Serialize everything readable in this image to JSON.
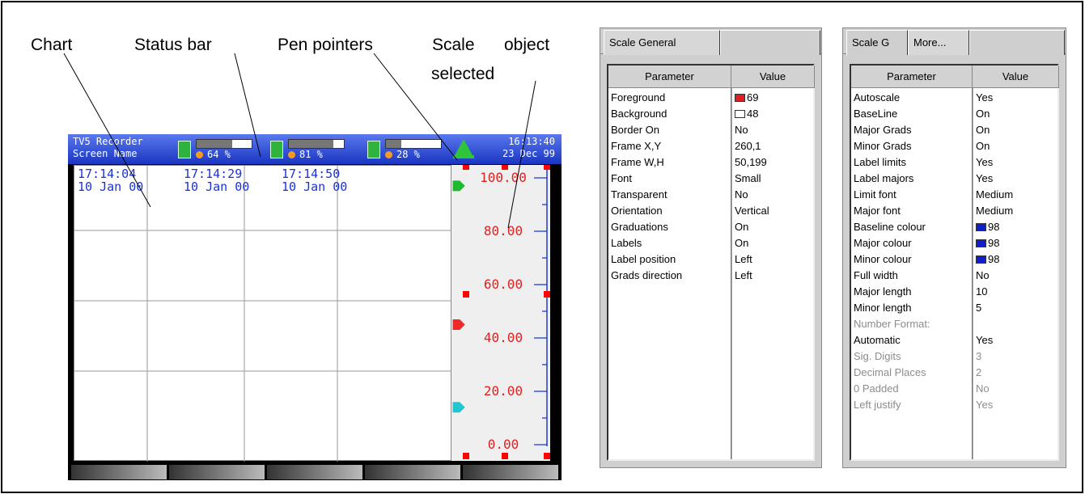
{
  "callouts": {
    "chart": "Chart",
    "status_bar": "Status bar",
    "pen_pointers": "Pen pointers",
    "scale_line1": "Scale",
    "scale_line2": "object",
    "scale_line3": "selected"
  },
  "recorder": {
    "title_line1": "TV5 Recorder",
    "title_line2": "Screen Name",
    "time": "16:13:40",
    "date": "23 Dec 99",
    "meters": [
      {
        "pct_label": "64 %",
        "fill": 0.64
      },
      {
        "pct_label": "81 %",
        "fill": 0.81
      },
      {
        "pct_label": "28 %",
        "fill": 0.28
      }
    ],
    "timestamps": [
      {
        "time": "17:14:04",
        "date": "10 Jan 00"
      },
      {
        "time": "17:14:29",
        "date": "10 Jan 00"
      },
      {
        "time": "17:14:50",
        "date": "10 Jan 00"
      }
    ],
    "scale_labels": [
      "100.00",
      "80.00",
      "60.00",
      "40.00",
      "20.00",
      "0.00"
    ],
    "pen_colors": {
      "red": "#ee2b2b",
      "green": "#1fbb2e",
      "cyan": "#22c6cf"
    },
    "pen_pointer_values": {
      "green": 97,
      "red": 45,
      "cyan": 14
    }
  },
  "panel_general": {
    "tabs": [
      "Scale  General",
      ""
    ],
    "header": {
      "param": "Parameter",
      "value": "Value"
    },
    "rows": [
      {
        "param": "Foreground",
        "value": "69",
        "swatch": "#e02020"
      },
      {
        "param": "Background",
        "value": "48",
        "swatch": "#ffffff"
      },
      {
        "param": "Border On",
        "value": "No"
      },
      {
        "param": "Frame X,Y",
        "value": "260,1"
      },
      {
        "param": "Frame W,H",
        "value": "50,199"
      },
      {
        "param": "Font",
        "value": "Small"
      },
      {
        "param": "Transparent",
        "value": "No"
      },
      {
        "param": "Orientation",
        "value": "Vertical"
      },
      {
        "param": "Graduations",
        "value": "On"
      },
      {
        "param": "Labels",
        "value": "On"
      },
      {
        "param": "Label position",
        "value": "Left"
      },
      {
        "param": "Grads direction",
        "value": "Left"
      }
    ]
  },
  "panel_more": {
    "tabs": [
      "Scale  G",
      "More...",
      ""
    ],
    "header": {
      "param": "Parameter",
      "value": "Value"
    },
    "rows": [
      {
        "param": "Autoscale",
        "value": "Yes"
      },
      {
        "param": "BaseLine",
        "value": "On"
      },
      {
        "param": "Major Grads",
        "value": "On"
      },
      {
        "param": "Minor Grads",
        "value": "On"
      },
      {
        "param": "Label limits",
        "value": "Yes"
      },
      {
        "param": "Label majors",
        "value": "Yes"
      },
      {
        "param": "Limit font",
        "value": "Medium"
      },
      {
        "param": "Major font",
        "value": "Medium"
      },
      {
        "param": "Baseline colour",
        "value": "98",
        "swatch": "#1020c8"
      },
      {
        "param": "Major colour",
        "value": "98",
        "swatch": "#1020c8"
      },
      {
        "param": "Minor colour",
        "value": "98",
        "swatch": "#1020c8"
      },
      {
        "param": "Full width",
        "value": "No"
      },
      {
        "param": "Major length",
        "value": "10"
      },
      {
        "param": "Minor length",
        "value": "5"
      },
      {
        "param": "Number Format:",
        "value": "",
        "dim": true
      },
      {
        "param": "Automatic",
        "value": "Yes"
      },
      {
        "param": "Sig. Digits",
        "value": "3",
        "dim": true
      },
      {
        "param": "Decimal Places",
        "value": "2",
        "dim": true
      },
      {
        "param": "0 Padded",
        "value": "No",
        "dim": true
      },
      {
        "param": "Left justify",
        "value": "Yes",
        "dim": true
      }
    ]
  }
}
